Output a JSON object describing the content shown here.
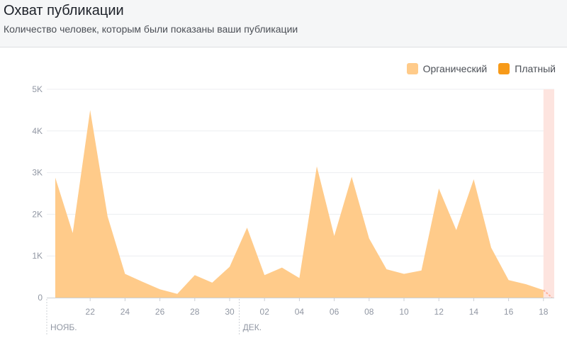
{
  "header": {
    "title": "Охват публикации",
    "subtitle": "Количество человек, которым были показаны ваши публикации"
  },
  "chart_data": {
    "type": "area",
    "x": [
      "2018-11-20",
      "2018-11-21",
      "2018-11-22",
      "2018-11-23",
      "2018-11-24",
      "2018-11-25",
      "2018-11-26",
      "2018-11-27",
      "2018-11-28",
      "2018-11-29",
      "2018-11-30",
      "2018-12-01",
      "2018-12-02",
      "2018-12-03",
      "2018-12-04",
      "2018-12-05",
      "2018-12-06",
      "2018-12-07",
      "2018-12-08",
      "2018-12-09",
      "2018-12-10",
      "2018-12-11",
      "2018-12-12",
      "2018-12-13",
      "2018-12-14",
      "2018-12-15",
      "2018-12-16",
      "2018-12-17",
      "2018-12-18"
    ],
    "series": [
      {
        "name": "Органический",
        "color": "#ffcb8a",
        "values": [
          2880,
          1550,
          4500,
          1950,
          570,
          380,
          200,
          90,
          540,
          360,
          740,
          1680,
          540,
          720,
          470,
          3150,
          1480,
          2900,
          1420,
          680,
          570,
          650,
          2620,
          1620,
          2840,
          1200,
          420,
          320,
          180
        ]
      },
      {
        "name": "Платный",
        "color": "#f79a19",
        "values": [
          0,
          0,
          0,
          0,
          0,
          0,
          0,
          0,
          0,
          0,
          0,
          0,
          0,
          0,
          0,
          0,
          0,
          0,
          0,
          0,
          0,
          0,
          0,
          0,
          0,
          0,
          0,
          0,
          0
        ]
      }
    ],
    "ylim": [
      0,
      5000
    ],
    "y_ticks": [
      0,
      1000,
      2000,
      3000,
      4000,
      5000
    ],
    "y_tick_labels": [
      "0",
      "1K",
      "2K",
      "3K",
      "4K",
      "5K"
    ],
    "x_tick_labels": [
      "22",
      "24",
      "26",
      "28",
      "30",
      "02",
      "04",
      "06",
      "08",
      "10",
      "12",
      "14",
      "16",
      "18"
    ],
    "x_tick_dates": [
      "2018-11-22",
      "2018-11-24",
      "2018-11-26",
      "2018-11-28",
      "2018-11-30",
      "2018-12-02",
      "2018-12-04",
      "2018-12-06",
      "2018-12-08",
      "2018-12-10",
      "2018-12-12",
      "2018-12-14",
      "2018-12-16",
      "2018-12-18"
    ],
    "month_labels": [
      {
        "label": "НОЯБ.",
        "date": "2018-11-20"
      },
      {
        "label": "ДЕК.",
        "date": "2018-12-01"
      }
    ],
    "highlight_start": "2018-12-18",
    "highlight_color": "#fde4df",
    "legend_position": "top-right",
    "grid": true
  }
}
